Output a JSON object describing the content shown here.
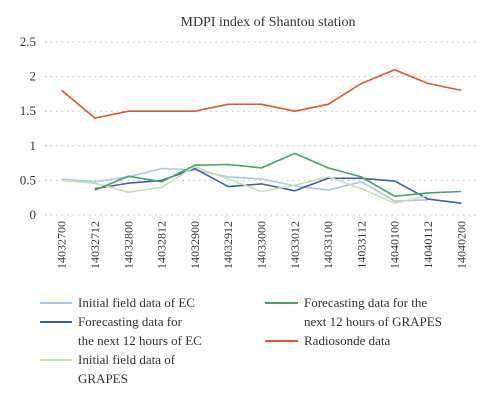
{
  "chart_data": {
    "type": "line",
    "title": "MDPI index of Shantou station",
    "xlabel": "",
    "ylabel": "",
    "ylim": [
      0,
      2.5
    ],
    "yticks": [
      "0",
      "0.5",
      "1",
      "1.5",
      "2",
      "2.5"
    ],
    "grid": true,
    "legend_position": "bottom",
    "categories": [
      "14032700",
      "14032712",
      "14032800",
      "14032812",
      "14032900",
      "14032912",
      "14033000",
      "14033012",
      "14033100",
      "14033112",
      "14040100",
      "14040112",
      "14040200"
    ],
    "series": [
      {
        "name": "Initial field data of EC",
        "color": "#a9c8ea",
        "values": [
          0.52,
          0.48,
          0.55,
          0.67,
          0.65,
          0.55,
          0.52,
          0.42,
          0.36,
          0.48,
          0.2,
          0.22,
          null
        ]
      },
      {
        "name": "Forecasting data for the next 12 hours of EC",
        "color": "#3f5fa8",
        "values": [
          null,
          0.38,
          0.46,
          0.5,
          0.67,
          0.41,
          0.45,
          0.35,
          0.53,
          0.53,
          0.49,
          0.23,
          0.17
        ]
      },
      {
        "name": "Initial field data of GRAPES",
        "color": "#c5e2b3",
        "values": [
          0.5,
          0.46,
          0.33,
          0.4,
          0.7,
          0.52,
          0.34,
          0.43,
          0.55,
          0.38,
          0.17,
          0.28,
          null
        ]
      },
      {
        "name": "Forecasting data for the next 12 hours of GRAPES",
        "color": "#4aa364",
        "values": [
          null,
          0.36,
          0.56,
          0.48,
          0.72,
          0.73,
          0.68,
          0.89,
          0.68,
          0.55,
          0.27,
          0.32,
          0.34
        ]
      },
      {
        "name": "Radiosonde data",
        "color": "#d9582d",
        "values": [
          1.8,
          1.4,
          1.5,
          1.5,
          1.5,
          1.6,
          1.6,
          1.5,
          1.6,
          1.9,
          2.1,
          1.9,
          1.8
        ]
      }
    ],
    "legend": {
      "col1": [
        {
          "series": 0,
          "lines": [
            "Initial field data of EC"
          ]
        },
        {
          "series": 1,
          "lines": [
            "Forecasting data for",
            "the next 12 hours of EC"
          ]
        },
        {
          "series": 2,
          "lines": [
            "Initial field data of",
            "GRAPES"
          ]
        }
      ],
      "col2": [
        {
          "series": 3,
          "lines": [
            "Forecasting data for the",
            "next 12 hours of GRAPES"
          ]
        },
        {
          "series": 4,
          "lines": [
            "Radiosonde data"
          ]
        }
      ]
    }
  }
}
